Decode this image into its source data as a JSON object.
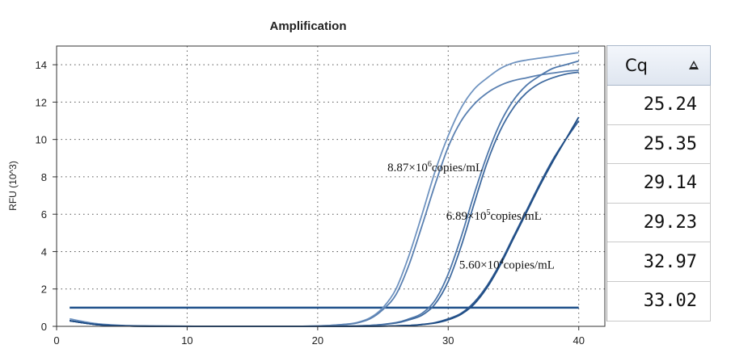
{
  "chart_data": {
    "type": "line",
    "title": "Amplification",
    "xlabel": "",
    "ylabel": "RFU (10^3)",
    "xlim": [
      0,
      42
    ],
    "ylim": [
      0,
      15
    ],
    "xticks": [
      0,
      10,
      20,
      30,
      40
    ],
    "yticks": [
      0,
      2,
      4,
      6,
      8,
      10,
      12,
      14
    ],
    "grid": true,
    "threshold": 1.0,
    "series": [
      {
        "color": "#6f93c0",
        "x": [
          1,
          3,
          5,
          8,
          12,
          16,
          20,
          22,
          23,
          24,
          25,
          26,
          27,
          28,
          29,
          30,
          31,
          32,
          33,
          34,
          35,
          36,
          37,
          38,
          39,
          40
        ],
        "y": [
          0.4,
          0.15,
          0.05,
          0.02,
          0.0,
          0.0,
          0.02,
          0.1,
          0.2,
          0.45,
          1.0,
          2.0,
          3.8,
          6.0,
          8.3,
          10.2,
          11.7,
          12.7,
          13.3,
          13.8,
          14.1,
          14.25,
          14.35,
          14.45,
          14.55,
          14.65
        ]
      },
      {
        "color": "#5a80b1",
        "x": [
          1,
          3,
          5,
          8,
          12,
          16,
          20,
          22,
          23,
          24,
          25,
          26,
          27,
          28,
          29,
          30,
          31,
          32,
          33,
          34,
          35,
          36,
          37,
          38,
          39,
          40
        ],
        "y": [
          0.3,
          0.1,
          0.03,
          0.01,
          0.0,
          0.0,
          0.02,
          0.1,
          0.18,
          0.4,
          0.9,
          1.7,
          3.3,
          5.4,
          7.6,
          9.6,
          11.0,
          11.9,
          12.5,
          12.9,
          13.15,
          13.3,
          13.45,
          13.55,
          13.65,
          13.7
        ]
      },
      {
        "color": "#4f78ab",
        "x": [
          1,
          3,
          5,
          8,
          12,
          16,
          20,
          24,
          26,
          27,
          28,
          29,
          30,
          31,
          32,
          33,
          34,
          35,
          36,
          37,
          38,
          39,
          40
        ],
        "y": [
          0.3,
          0.1,
          0.03,
          0.0,
          0.0,
          0.0,
          0.0,
          0.05,
          0.2,
          0.4,
          0.7,
          1.4,
          2.8,
          4.8,
          7.1,
          9.2,
          10.9,
          12.1,
          12.9,
          13.4,
          13.8,
          14.0,
          14.2
        ]
      },
      {
        "color": "#3f6a9f",
        "x": [
          1,
          3,
          5,
          8,
          12,
          16,
          20,
          24,
          26,
          27,
          28,
          29,
          30,
          31,
          32,
          33,
          34,
          35,
          36,
          37,
          38,
          39,
          40
        ],
        "y": [
          0.3,
          0.1,
          0.03,
          0.0,
          0.0,
          0.0,
          0.0,
          0.05,
          0.18,
          0.35,
          0.6,
          1.2,
          2.4,
          4.3,
          6.6,
          8.8,
          10.5,
          11.7,
          12.5,
          13.0,
          13.3,
          13.5,
          13.6
        ]
      },
      {
        "color": "#2f5a92",
        "x": [
          1,
          3,
          5,
          8,
          12,
          16,
          20,
          24,
          27,
          28,
          29,
          30,
          31,
          32,
          33,
          34,
          35,
          36,
          37,
          38,
          39,
          40
        ],
        "y": [
          0.3,
          0.1,
          0.03,
          0.0,
          0.0,
          0.0,
          0.0,
          0.0,
          0.05,
          0.1,
          0.2,
          0.4,
          0.7,
          1.3,
          2.2,
          3.4,
          4.8,
          6.2,
          7.6,
          8.9,
          10.0,
          11.0
        ]
      },
      {
        "color": "#1f4d85",
        "x": [
          1,
          3,
          5,
          8,
          12,
          16,
          20,
          24,
          27,
          28,
          29,
          30,
          31,
          32,
          33,
          34,
          35,
          36,
          37,
          38,
          39,
          40
        ],
        "y": [
          0.3,
          0.1,
          0.03,
          0.0,
          0.0,
          0.0,
          0.0,
          0.0,
          0.05,
          0.1,
          0.18,
          0.35,
          0.65,
          1.2,
          2.1,
          3.3,
          4.7,
          6.1,
          7.5,
          8.8,
          10.0,
          11.2
        ]
      }
    ],
    "annotations": [
      {
        "mantissa": "8.87×10",
        "exponent": "6",
        "unit": "copies/mL",
        "x": 29.0,
        "y": 8.3
      },
      {
        "mantissa": "6.89×10",
        "exponent": "5",
        "unit": "copies/mL",
        "x": 33.5,
        "y": 5.7
      },
      {
        "mantissa": "5.60×10",
        "exponent": "4",
        "unit": "copies/mL",
        "x": 34.5,
        "y": 3.1
      }
    ]
  },
  "cq_table": {
    "header": "Cq",
    "sort_icon": "triangle-up-icon",
    "values": [
      "25.24",
      "25.35",
      "29.14",
      "29.23",
      "32.97",
      "33.02"
    ]
  }
}
